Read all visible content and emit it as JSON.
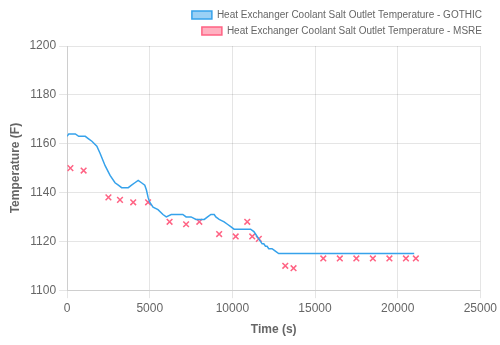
{
  "chart_data": {
    "type": "line",
    "xlabel": "Time (s)",
    "ylabel": "Temperature (F)",
    "xlim": [
      0,
      25000
    ],
    "ylim": [
      1100,
      1200
    ],
    "xticks": [
      0,
      5000,
      10000,
      15000,
      20000,
      25000
    ],
    "yticks": [
      1100,
      1120,
      1140,
      1160,
      1180,
      1200
    ],
    "grid": true,
    "legend": "upper right",
    "series": [
      {
        "name": "Heat Exchanger Coolant Salt Outlet Temperature - GOTHIC",
        "type": "line",
        "x": [
          0,
          100,
          300,
          500,
          700,
          900,
          1100,
          1300,
          1500,
          1800,
          2000,
          2300,
          2600,
          2900,
          3100,
          3300,
          3500,
          3700,
          3900,
          4100,
          4300,
          4500,
          4700,
          4800,
          4900,
          5000,
          5200,
          5500,
          5800,
          6000,
          6300,
          6600,
          7000,
          7200,
          7500,
          7800,
          8000,
          8300,
          8500,
          8700,
          8900,
          9000,
          9200,
          9500,
          9700,
          9900,
          10100,
          10300,
          10500,
          10700,
          10900,
          11100,
          11300,
          11400,
          11500,
          11600,
          11700,
          11800,
          11900,
          12000,
          12100,
          12200,
          12400,
          12600,
          12800,
          13000,
          13300,
          13600,
          14000,
          15000,
          16000,
          17000,
          18000,
          19000,
          20000,
          21000
        ],
        "values": [
          1163,
          1164,
          1164,
          1164,
          1163,
          1163,
          1163,
          1162,
          1161,
          1159,
          1156,
          1151,
          1147,
          1144,
          1143,
          1142,
          1142,
          1142,
          1143,
          1144,
          1145,
          1144,
          1143,
          1141,
          1138,
          1136,
          1134,
          1133,
          1131,
          1130,
          1131,
          1131,
          1131,
          1130,
          1130,
          1129,
          1129,
          1129,
          1130,
          1131,
          1131,
          1130,
          1129,
          1128,
          1127,
          1126,
          1125,
          1125,
          1125,
          1125,
          1125,
          1125,
          1124,
          1123,
          1122,
          1121,
          1120,
          1119,
          1119,
          1118,
          1118,
          1117,
          1117,
          1116,
          1115,
          1115,
          1115,
          1115,
          1115,
          1115,
          1115,
          1115,
          1115,
          1115,
          1115,
          1115
        ]
      },
      {
        "name": "Heat Exchanger Coolant Salt Outlet Temperature - MSRE",
        "type": "scatter",
        "marker": "x",
        "x": [
          200,
          1000,
          2500,
          3200,
          4000,
          4900,
          6200,
          7200,
          8000,
          9200,
          10200,
          10900,
          11200,
          11600,
          13200,
          13700,
          15500,
          16500,
          17500,
          18500,
          19500,
          20500,
          21100
        ],
        "values": [
          1150,
          1149,
          1138,
          1137,
          1136,
          1136,
          1128,
          1127,
          1128,
          1123,
          1122,
          1128,
          1122,
          1121,
          1110,
          1109,
          1113,
          1113,
          1113,
          1113,
          1113,
          1113,
          1113
        ]
      }
    ]
  }
}
